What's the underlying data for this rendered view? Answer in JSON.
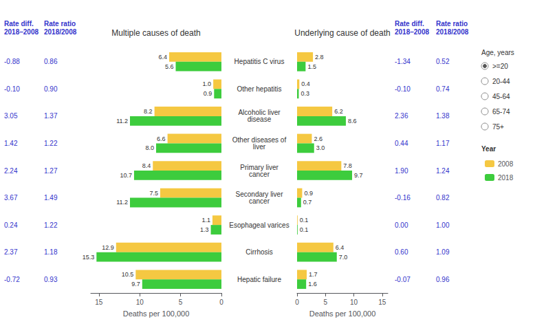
{
  "chart_data": [
    {
      "type": "bar",
      "orientation": "horizontal",
      "title": "Multiple causes of death",
      "categories": [
        "Hepatitis C virus",
        "Other hepatitis",
        "Alcoholic liver\ndisease",
        "Other diseases of\nliver",
        "Primary liver\ncancer",
        "Secondary liver\ncancer",
        "Esophageal varices",
        "Cirrhosis",
        "Hepatic failure"
      ],
      "series": [
        {
          "name": "2008",
          "color": "#F5C842",
          "values": [
            6.4,
            1.0,
            8.2,
            6.6,
            8.4,
            7.5,
            1.1,
            12.9,
            10.5
          ],
          "value_labels": [
            "6.4",
            "1.0",
            "8.2",
            "6.6",
            "8.4",
            "7.5",
            "1.1",
            "12.9",
            "10.5"
          ]
        },
        {
          "name": "2018",
          "color": "#3DCC3D",
          "values": [
            5.6,
            0.9,
            11.2,
            8.0,
            10.7,
            11.2,
            1.3,
            15.3,
            9.7
          ],
          "value_labels": [
            "5.6",
            "0.9",
            "11.2",
            "8.0",
            "10.7",
            "11.2",
            "1.3",
            "15.3",
            "9.7"
          ]
        }
      ],
      "xlabel": "Deaths per 100,000",
      "xlim": [
        0,
        16
      ],
      "xticks": [
        0,
        5,
        10,
        15
      ],
      "grid": false,
      "data_labels": true,
      "legend": "right",
      "table": [
        {
          "header": "Rate diff.\n2018–2008",
          "color": "#3333CC",
          "values": [
            -0.88,
            -0.1,
            3.05,
            1.42,
            2.24,
            3.67,
            0.24,
            2.37,
            -0.72
          ],
          "value_labels": [
            "-0.88",
            "-0.10",
            "3.05",
            "1.42",
            "2.24",
            "3.67",
            "0.24",
            "2.37",
            "-0.72"
          ]
        },
        {
          "header": "Rate ratio\n2018/2008",
          "color": "#3333CC",
          "values": [
            0.86,
            0.9,
            1.37,
            1.22,
            1.27,
            1.49,
            1.22,
            1.18,
            0.93
          ],
          "value_labels": [
            "0.86",
            "0.90",
            "1.37",
            "1.22",
            "1.27",
            "1.49",
            "1.22",
            "1.18",
            "0.93"
          ]
        }
      ]
    },
    {
      "type": "bar",
      "orientation": "horizontal",
      "title": "Underlying cause of death",
      "categories": [
        "Hepatitis C virus",
        "Other hepatitis",
        "Alcoholic liver\ndisease",
        "Other diseases of\nliver",
        "Primary liver\ncancer",
        "Secondary liver\ncancer",
        "Esophageal varices",
        "Cirrhosis",
        "Hepatic failure"
      ],
      "series": [
        {
          "name": "2008",
          "color": "#F5C842",
          "values": [
            2.8,
            0.4,
            6.2,
            2.6,
            7.8,
            0.9,
            0.1,
            6.4,
            1.7
          ],
          "value_labels": [
            "2.8",
            "0.4",
            "6.2",
            "2.6",
            "7.8",
            "0.9",
            "0.1",
            "6.4",
            "1.7"
          ]
        },
        {
          "name": "2018",
          "color": "#3DCC3D",
          "values": [
            1.5,
            0.3,
            8.6,
            3.0,
            9.7,
            0.7,
            0.1,
            7.0,
            1.6
          ],
          "value_labels": [
            "1.5",
            "0.3",
            "8.6",
            "3.0",
            "9.7",
            "0.7",
            "0.1",
            "7.0",
            "1.6"
          ]
        }
      ],
      "xlabel": "Deaths per 100,000",
      "xlim": [
        0,
        16
      ],
      "xticks": [
        0,
        5,
        10,
        15
      ],
      "grid": false,
      "data_labels": true,
      "legend": "right",
      "legend_title": "Year",
      "age_legend": {
        "title": "Age, years",
        "labels": [
          ">=20",
          "20-44",
          "45-64",
          "65-74",
          "75+"
        ]
      },
      "table": [
        {
          "header": "Rate diff.\n2018–2008",
          "color": "#3333CC",
          "values": [
            -1.34,
            -0.1,
            2.36,
            0.44,
            1.9,
            -0.16,
            0.0,
            0.6,
            -0.07
          ],
          "value_labels": [
            "-1.34",
            "-0.10",
            "2.36",
            "0.44",
            "1.90",
            "-0.16",
            "0.00",
            "0.60",
            "-0.07"
          ]
        },
        {
          "header": "Rate ratio\n2018/2008",
          "color": "#3333CC",
          "values": [
            0.52,
            0.74,
            1.38,
            1.17,
            1.24,
            0.82,
            1.0,
            1.09,
            0.96
          ],
          "value_labels": [
            "0.52",
            "0.74",
            "1.38",
            "1.17",
            "1.24",
            "0.82",
            "1.00",
            "1.09",
            "0.96"
          ]
        }
      ]
    }
  ]
}
